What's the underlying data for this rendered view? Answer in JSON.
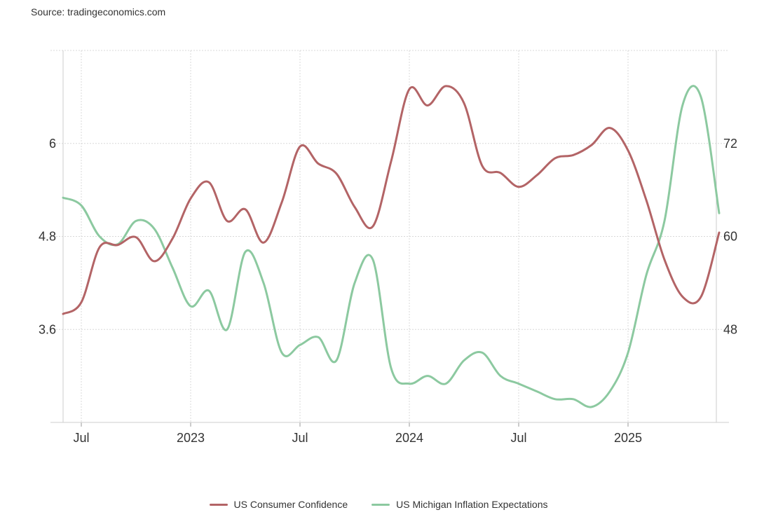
{
  "source": "Source: tradingeconomics.com",
  "colors": {
    "confidence": "#b36466",
    "inflation": "#8cc9a0",
    "grid": "#d8d8d8"
  },
  "chart_data": {
    "type": "line",
    "x_start": "2022-06",
    "left_axis": {
      "ticks": [
        3.6,
        4.8,
        6
      ],
      "tick_labels": [
        "3.6",
        "4.8",
        "6"
      ],
      "range": [
        2.4,
        7.2
      ]
    },
    "right_axis": {
      "ticks": [
        48,
        60,
        72
      ],
      "tick_labels": [
        "48",
        "60",
        "72"
      ],
      "range": [
        36,
        84
      ]
    },
    "x_ticks": [
      {
        "label": "Jul",
        "month": "2022-07"
      },
      {
        "label": "2023",
        "month": "2023-01"
      },
      {
        "label": "Jul",
        "month": "2023-07"
      },
      {
        "label": "2024",
        "month": "2024-01"
      },
      {
        "label": "Jul",
        "month": "2024-07"
      },
      {
        "label": "2025",
        "month": "2025-01"
      }
    ],
    "series": [
      {
        "name": "US Consumer Confidence",
        "axis": "right",
        "x": [
          "2022-06",
          "2022-07",
          "2022-08",
          "2022-09",
          "2022-10",
          "2022-11",
          "2022-12",
          "2023-01",
          "2023-02",
          "2023-03",
          "2023-04",
          "2023-05",
          "2023-06",
          "2023-07",
          "2023-08",
          "2023-09",
          "2023-10",
          "2023-11",
          "2023-12",
          "2024-01",
          "2024-02",
          "2024-03",
          "2024-04",
          "2024-05",
          "2024-06",
          "2024-07",
          "2024-08",
          "2024-09",
          "2024-10",
          "2024-11",
          "2024-12",
          "2025-01",
          "2025-02",
          "2025-03",
          "2025-04",
          "2025-05",
          "2025-06"
        ],
        "values": [
          50.0,
          51.5,
          58.6,
          58.9,
          59.9,
          56.8,
          59.7,
          64.9,
          67.0,
          62.0,
          63.5,
          59.2,
          64.4,
          71.6,
          69.4,
          68.1,
          63.8,
          61.3,
          69.7,
          79.0,
          76.9,
          79.4,
          77.2,
          69.1,
          68.2,
          66.4,
          67.9,
          70.1,
          70.5,
          71.8,
          74.0,
          71.1,
          64.7,
          57.0,
          52.2,
          52.2,
          60.5
        ]
      },
      {
        "name": "US Michigan Inflation Expectations",
        "axis": "left",
        "x": [
          "2022-06",
          "2022-07",
          "2022-08",
          "2022-09",
          "2022-10",
          "2022-11",
          "2022-12",
          "2023-01",
          "2023-02",
          "2023-03",
          "2023-04",
          "2023-05",
          "2023-06",
          "2023-07",
          "2023-08",
          "2023-09",
          "2023-10",
          "2023-11",
          "2023-12",
          "2024-01",
          "2024-02",
          "2024-03",
          "2024-04",
          "2024-05",
          "2024-06",
          "2024-07",
          "2024-08",
          "2024-09",
          "2024-10",
          "2024-11",
          "2024-12",
          "2025-01",
          "2025-02",
          "2025-03",
          "2025-04",
          "2025-05",
          "2025-06"
        ],
        "values": [
          5.3,
          5.2,
          4.8,
          4.7,
          5.0,
          4.9,
          4.4,
          3.9,
          4.1,
          3.6,
          4.6,
          4.2,
          3.3,
          3.4,
          3.5,
          3.2,
          4.2,
          4.5,
          3.1,
          2.9,
          3.0,
          2.9,
          3.2,
          3.3,
          3.0,
          2.9,
          2.8,
          2.7,
          2.7,
          2.6,
          2.8,
          3.3,
          4.3,
          5.0,
          6.5,
          6.6,
          5.1
        ]
      }
    ]
  }
}
